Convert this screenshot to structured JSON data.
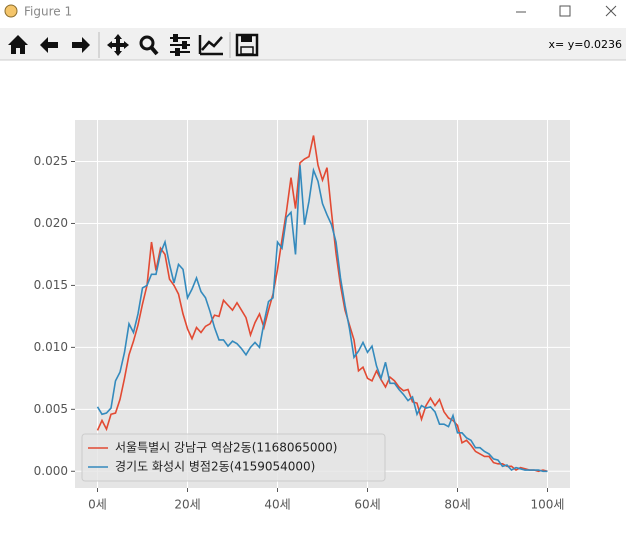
{
  "window": {
    "title": "Figure 1",
    "status": "x= y=0.0236"
  },
  "chart_data": {
    "type": "line",
    "x": [
      0,
      1,
      2,
      3,
      4,
      5,
      6,
      7,
      8,
      9,
      10,
      11,
      12,
      13,
      14,
      15,
      16,
      17,
      18,
      19,
      20,
      21,
      22,
      23,
      24,
      25,
      26,
      27,
      28,
      29,
      30,
      31,
      32,
      33,
      34,
      35,
      36,
      37,
      38,
      39,
      40,
      41,
      42,
      43,
      44,
      45,
      46,
      47,
      48,
      49,
      50,
      51,
      52,
      53,
      54,
      55,
      56,
      57,
      58,
      59,
      60,
      61,
      62,
      63,
      64,
      65,
      66,
      67,
      68,
      69,
      70,
      71,
      72,
      73,
      74,
      75,
      76,
      77,
      78,
      79,
      80,
      81,
      82,
      83,
      84,
      85,
      86,
      87,
      88,
      89,
      90,
      91,
      92,
      93,
      94,
      95,
      96,
      97,
      98,
      99,
      100
    ],
    "series": [
      {
        "name": "서울특별시 강남구 역삼2동(1168065000)",
        "color": "#e24a33",
        "values": [
          0.0033,
          0.0041,
          0.0034,
          0.0046,
          0.0047,
          0.0058,
          0.0075,
          0.0094,
          0.0105,
          0.0118,
          0.0135,
          0.015,
          0.0185,
          0.0162,
          0.018,
          0.0175,
          0.0155,
          0.015,
          0.0143,
          0.0127,
          0.0115,
          0.0107,
          0.0116,
          0.0112,
          0.0117,
          0.0119,
          0.0126,
          0.0125,
          0.0138,
          0.0134,
          0.013,
          0.0136,
          0.013,
          0.0124,
          0.011,
          0.012,
          0.0127,
          0.0116,
          0.013,
          0.0143,
          0.0163,
          0.0187,
          0.021,
          0.0237,
          0.0212,
          0.0249,
          0.0252,
          0.0254,
          0.0271,
          0.0247,
          0.0235,
          0.0245,
          0.0209,
          0.0176,
          0.015,
          0.013,
          0.0118,
          0.0106,
          0.0081,
          0.0084,
          0.0075,
          0.0073,
          0.0081,
          0.0074,
          0.0068,
          0.0076,
          0.0073,
          0.0068,
          0.0065,
          0.0066,
          0.0056,
          0.0055,
          0.0042,
          0.0053,
          0.0059,
          0.0053,
          0.0058,
          0.0048,
          0.0043,
          0.0041,
          0.0037,
          0.0023,
          0.0025,
          0.0021,
          0.0016,
          0.0014,
          0.0012,
          0.0012,
          0.0007,
          0.0006,
          0.0006,
          0.0004,
          0.0004,
          0.0001,
          0.0003,
          0.0002,
          0.0001,
          0.0001,
          0,
          0.0001,
          0
        ]
      },
      {
        "name": "경기도 화성시 병점2동(4159054000)",
        "color": "#348abd",
        "values": [
          0.0052,
          0.0046,
          0.0047,
          0.0051,
          0.0073,
          0.008,
          0.0096,
          0.0119,
          0.0112,
          0.0127,
          0.0148,
          0.015,
          0.0159,
          0.0159,
          0.0176,
          0.0185,
          0.0167,
          0.0152,
          0.0167,
          0.0163,
          0.014,
          0.0147,
          0.0156,
          0.0145,
          0.014,
          0.0129,
          0.0116,
          0.0106,
          0.0106,
          0.0101,
          0.0105,
          0.0103,
          0.0099,
          0.0094,
          0.01,
          0.0104,
          0.01,
          0.012,
          0.0137,
          0.014,
          0.0185,
          0.018,
          0.0205,
          0.0209,
          0.0175,
          0.0247,
          0.0199,
          0.0218,
          0.0243,
          0.0234,
          0.0216,
          0.0207,
          0.0199,
          0.0185,
          0.0156,
          0.0134,
          0.0115,
          0.0092,
          0.0097,
          0.0104,
          0.0096,
          0.0101,
          0.0085,
          0.0075,
          0.0088,
          0.0071,
          0.0071,
          0.0066,
          0.0062,
          0.0057,
          0.006,
          0.0046,
          0.0053,
          0.0051,
          0.0052,
          0.0048,
          0.0038,
          0.0038,
          0.0036,
          0.0045,
          0.0031,
          0.0031,
          0.0027,
          0.0025,
          0.0019,
          0.0019,
          0.0016,
          0.0014,
          0.001,
          0.0009,
          0.0004,
          0.0005,
          0.0001,
          0.0003,
          0.0002,
          0.0001,
          0.0001,
          0.0001,
          0.0001,
          0,
          0
        ]
      }
    ],
    "xlim": [
      -5,
      105
    ],
    "xticks": [
      {
        "value": 0,
        "label": "0세"
      },
      {
        "value": 20,
        "label": "20세"
      },
      {
        "value": 40,
        "label": "40세"
      },
      {
        "value": 60,
        "label": "60세"
      },
      {
        "value": 80,
        "label": "80세"
      },
      {
        "value": 100,
        "label": "100세"
      }
    ],
    "ylim": [
      -0.00135,
      0.02835
    ],
    "yticks": [
      {
        "value": 0,
        "label": "0.000"
      },
      0.005,
      {
        "value": 0.01,
        "label": "0.010"
      },
      0.015,
      {
        "value": 0.02,
        "label": "0.020"
      },
      0.025
    ],
    "grid": true,
    "legend": "lower left"
  }
}
